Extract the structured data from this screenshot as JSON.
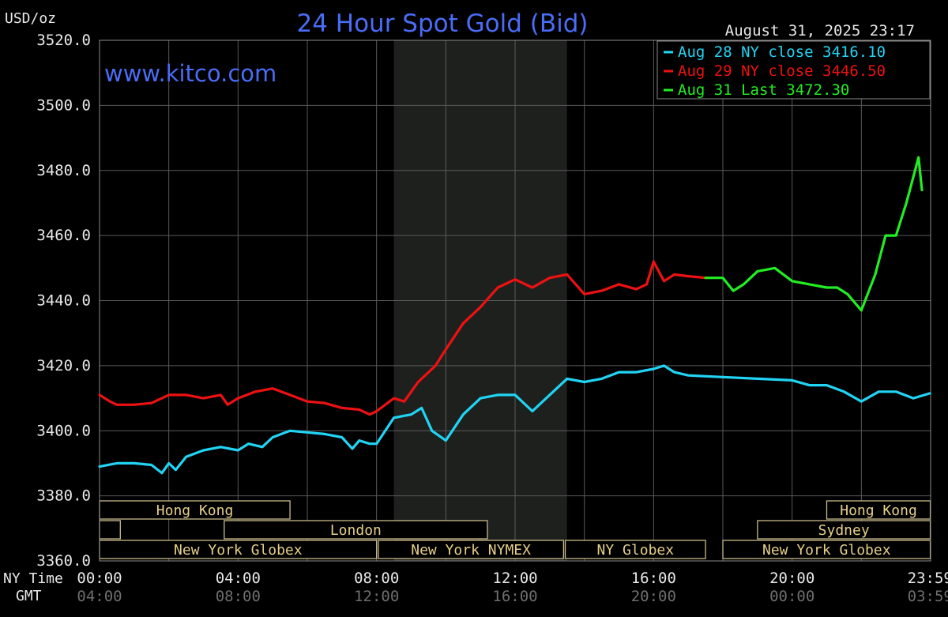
{
  "chart_data": {
    "type": "line",
    "title": "24 Hour Spot Gold (Bid)",
    "ylabel": "USD/oz",
    "timestamp": "August 31, 2025 23:17",
    "watermark": "www.kitco.com",
    "ylim": [
      3360,
      3520
    ],
    "y_ticks": [
      "3520.0",
      "3500.0",
      "3480.0",
      "3460.0",
      "3440.0",
      "3420.0",
      "3400.0",
      "3380.0",
      "3360.0"
    ],
    "x_row_labels": {
      "ny": "NY Time",
      "gmt": "GMT"
    },
    "x_ticks_ny": [
      "00:00",
      "04:00",
      "08:00",
      "12:00",
      "16:00",
      "20:00",
      "23:59"
    ],
    "x_ticks_gmt": [
      "04:00",
      "08:00",
      "12:00",
      "16:00",
      "20:00",
      "00:00",
      "03:59"
    ],
    "legend": [
      {
        "text": "Aug 28 NY close 3416.10",
        "color": "#21d4f4"
      },
      {
        "text": "Aug 29 NY close 3446.50",
        "color": "#ee1111"
      },
      {
        "text": "Aug 31 Last 3472.30",
        "color": "#22ee22"
      }
    ],
    "legend_placement": "top-right",
    "grid": true,
    "shaded_session_hours": [
      8.5,
      13.5
    ],
    "series": [
      {
        "name": "Aug 28",
        "color": "#21d4f4",
        "x": [
          0,
          0.5,
          1,
          1.5,
          1.8,
          2,
          2.2,
          2.5,
          3,
          3.5,
          4,
          4.3,
          4.7,
          5,
          5.5,
          6,
          6.5,
          7,
          7.3,
          7.5,
          7.8,
          8,
          8.5,
          9,
          9.3,
          9.6,
          10,
          10.5,
          11,
          11.5,
          12,
          12.5,
          13,
          13.5,
          14,
          14.5,
          15,
          15.5,
          16,
          16.3,
          16.6,
          17,
          18,
          19,
          20,
          20.5,
          21,
          21.5,
          22,
          22.5,
          23,
          23.5,
          23.98
        ],
        "y": [
          3389,
          3390,
          3390,
          3389.5,
          3387,
          3390,
          3388,
          3392,
          3394,
          3395,
          3394,
          3396,
          3395,
          3398,
          3400,
          3399.5,
          3399,
          3398,
          3394.5,
          3397,
          3396,
          3396,
          3404,
          3405,
          3407,
          3400,
          3397,
          3405,
          3410,
          3411,
          3411,
          3406,
          3411,
          3416,
          3415,
          3416,
          3418,
          3418,
          3419,
          3420,
          3418,
          3417,
          3416.5,
          3416,
          3415.5,
          3414,
          3414,
          3412,
          3409,
          3412,
          3412,
          3410,
          3411.5
        ]
      },
      {
        "name": "Aug 29",
        "color": "#ee1111",
        "x": [
          0,
          0.3,
          0.5,
          1,
          1.5,
          2,
          2.5,
          3,
          3.5,
          3.7,
          4,
          4.5,
          5,
          5.5,
          6,
          6.5,
          7,
          7.5,
          7.8,
          8,
          8.5,
          8.8,
          9.2,
          9.7,
          10,
          10.5,
          11,
          11.5,
          12,
          12.5,
          13,
          13.5,
          14,
          14.5,
          15,
          15.5,
          15.8,
          16,
          16.3,
          16.6,
          17,
          17.5
        ],
        "y": [
          3411,
          3409,
          3408,
          3408,
          3408.5,
          3411,
          3411,
          3410,
          3411,
          3408,
          3410,
          3412,
          3413,
          3411,
          3409,
          3408.5,
          3407,
          3406.5,
          3405,
          3406,
          3410,
          3409,
          3415,
          3420,
          3425,
          3433,
          3438,
          3444,
          3446.5,
          3444,
          3447,
          3448,
          3442,
          3443,
          3445,
          3443.5,
          3445,
          3452,
          3446,
          3448,
          3447.5,
          3447
        ]
      },
      {
        "name": "Aug 31",
        "color": "#22ee22",
        "x": [
          17.5,
          18,
          18.3,
          18.6,
          19,
          19.5,
          20,
          20.5,
          21,
          21.3,
          21.6,
          22,
          22.4,
          22.7,
          23,
          23.3,
          23.5,
          23.65,
          23.75
        ],
        "y": [
          3447,
          3447,
          3443,
          3445,
          3449,
          3450,
          3446,
          3445,
          3444,
          3444,
          3442,
          3437,
          3448,
          3460,
          3460,
          3470,
          3478,
          3484,
          3474
        ]
      }
    ]
  },
  "sessions": [
    {
      "label": "Hong Kong",
      "row": 0,
      "start": 0,
      "end": 5.5,
      "show_label": true
    },
    {
      "label": "Hong Kong",
      "row": 0,
      "start": 21,
      "end": 23.99,
      "show_label": true
    },
    {
      "label": "",
      "row": 1,
      "start": 0,
      "end": 0.6,
      "show_label": false
    },
    {
      "label": "London",
      "row": 1,
      "start": 3.6,
      "end": 11.2,
      "show_label": true
    },
    {
      "label": "Sydney",
      "row": 1,
      "start": 19,
      "end": 23.99,
      "show_label": true
    },
    {
      "label": "New York Globex",
      "row": 2,
      "start": 0,
      "end": 8.0,
      "show_label": true
    },
    {
      "label": "New York NYMEX",
      "row": 2,
      "start": 8.05,
      "end": 13.4,
      "show_label": true
    },
    {
      "label": "NY Globex",
      "row": 2,
      "start": 13.45,
      "end": 17.5,
      "show_label": true
    },
    {
      "label": "New York Globex",
      "row": 2,
      "start": 18,
      "end": 23.99,
      "show_label": true
    }
  ]
}
